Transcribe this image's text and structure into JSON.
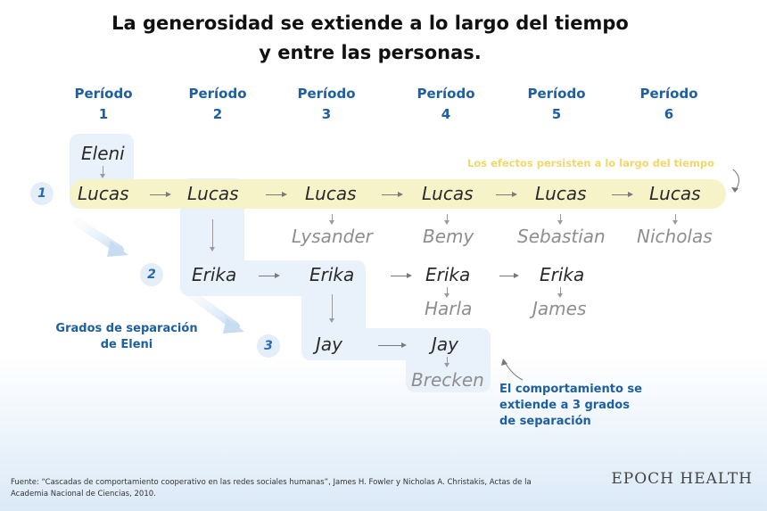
{
  "title": {
    "line1": "La generosidad se extiende a lo largo del tiempo",
    "line2": "y entre las personas."
  },
  "periods": [
    {
      "label": "Período",
      "num": "1"
    },
    {
      "label": "Período",
      "num": "2"
    },
    {
      "label": "Período",
      "num": "3"
    },
    {
      "label": "Período",
      "num": "4"
    },
    {
      "label": "Período",
      "num": "5"
    },
    {
      "label": "Período",
      "num": "6"
    }
  ],
  "degrees": [
    "1",
    "2",
    "3"
  ],
  "names": {
    "eleni": "Eleni",
    "lucas": "Lucas",
    "lysander": "Lysander",
    "bemy": "Bemy",
    "sebastian": "Sebastian",
    "nicholas": "Nicholas",
    "erika": "Erika",
    "harla": "Harla",
    "james": "James",
    "jay": "Jay",
    "brecken": "Brecken"
  },
  "annotations": {
    "time_note": "Los efectos persisten a lo largo del tiempo",
    "degrees_note_line1": "Grados de separación",
    "degrees_note_line2": "de Eleni",
    "spread_note_line1": "El comportamiento se",
    "spread_note_line2": "extiende a 3 grados",
    "spread_note_line3": "de separación"
  },
  "footer": {
    "source": "Fuente: “Cascadas de comportamiento cooperativo en las redes sociales humanas”, James H. Fowler y Nicholas A. Christakis, Actas de la Academia Nacional de Ciencias, 2010.",
    "brand": "EPOCH HEALTH"
  },
  "colors": {
    "accent_blue": "#1d5fa0",
    "yellow_highlight": "#f7f3c9",
    "yellow_text": "#f2d76b",
    "blue_highlight": "#e9f2fb"
  }
}
